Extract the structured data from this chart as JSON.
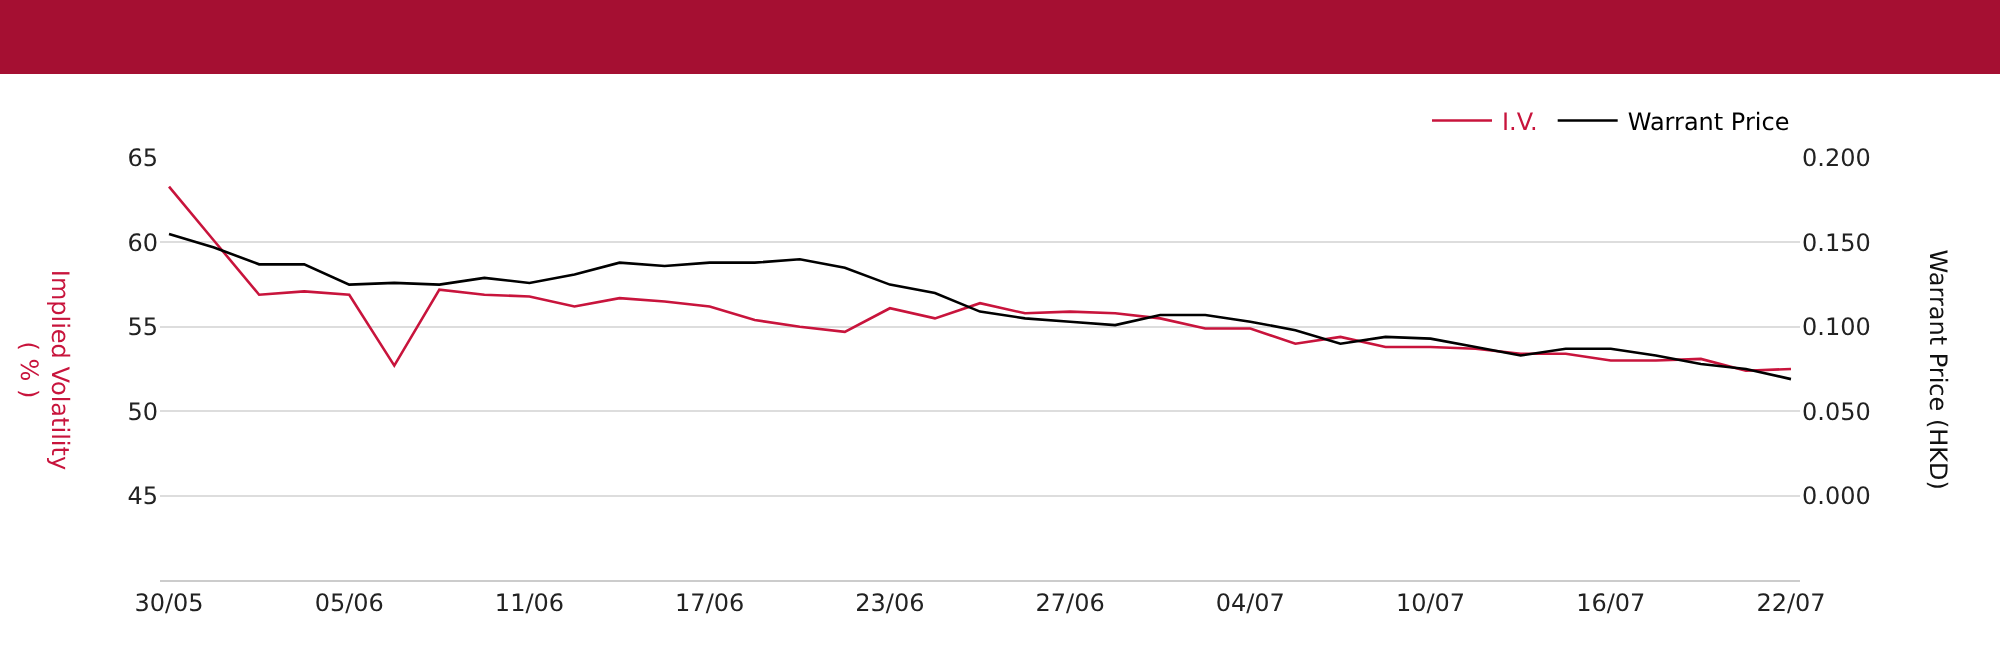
{
  "chart_data": {
    "type": "line",
    "xlabel": null,
    "ylabel": "Implied Volatility\n( % )",
    "y2label": "Warrant Price (HKD)",
    "categories": [
      "30/05",
      null,
      null,
      null,
      "05/06",
      null,
      null,
      null,
      "11/06",
      null,
      null,
      null,
      "17/06",
      null,
      null,
      null,
      "23/06",
      null,
      null,
      null,
      "27/06",
      null,
      null,
      null,
      "04/07",
      null,
      null,
      null,
      "10/07",
      null,
      null,
      null,
      "16/07",
      null,
      null,
      null,
      "22/07"
    ],
    "series": [
      {
        "name": "I.V.",
        "color": "#c8143c",
        "values": [
          63.3,
          60.1,
          56.9,
          57.1,
          56.9,
          52.7,
          57.2,
          56.9,
          56.8,
          56.2,
          56.7,
          56.5,
          56.2,
          55.4,
          55.0,
          54.7,
          56.1,
          55.5,
          56.4,
          55.8,
          55.9,
          55.8,
          55.5,
          54.9,
          54.9,
          54.0,
          54.4,
          53.8,
          53.8,
          53.7,
          53.4,
          53.4,
          53.0,
          53.0,
          53.1,
          52.4,
          52.5
        ]
      },
      {
        "name": "Warrant Price",
        "color": "#000000",
        "axis": "y2",
        "values": [
          0.155,
          0.147,
          0.137,
          0.137,
          0.125,
          0.126,
          0.125,
          0.129,
          0.126,
          0.131,
          0.138,
          0.136,
          0.138,
          0.138,
          0.14,
          0.135,
          0.125,
          0.12,
          0.109,
          0.105,
          0.103,
          0.101,
          0.107,
          0.107,
          0.103,
          0.098,
          0.09,
          0.094,
          0.093,
          0.088,
          0.083,
          0.087,
          0.087,
          0.083,
          0.078,
          0.075,
          0.069
        ]
      }
    ],
    "ylim": [
      40,
      65
    ],
    "yticks": [
      45,
      50,
      55,
      60,
      65
    ],
    "y2lim": [
      -0.05,
      0.2
    ],
    "y2ticks": [
      {
        "value": 0,
        "label": "0.000"
      },
      {
        "value": 0.05,
        "label": "0.050"
      },
      {
        "value": 0.1,
        "label": "0.100"
      },
      {
        "value": 0.15,
        "label": "0.150"
      },
      {
        "value": 0.2,
        "label": "0.200"
      }
    ],
    "grid": "y",
    "legend": "top right",
    "marker": "none",
    "line_style": "solid"
  }
}
